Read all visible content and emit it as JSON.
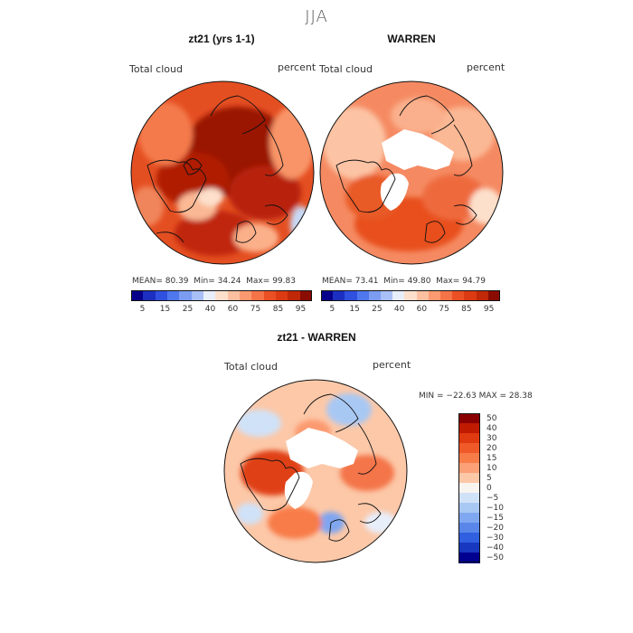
{
  "season": "JJA",
  "panels": [
    {
      "title": "zt21 (yrs 1-1)",
      "var_label": "Total cloud",
      "units": "percent",
      "stats": {
        "mean_label": "MEAN=",
        "mean": "80.39",
        "min_label": "Min=",
        "min": "34.24",
        "max_label": "Max=",
        "max": "99.83"
      }
    },
    {
      "title": "WARREN",
      "var_label": "Total cloud",
      "units": "percent",
      "stats": {
        "mean_label": "MEAN=",
        "mean": "73.41",
        "min_label": "Min=",
        "min": "49.80",
        "max_label": "Max=",
        "max": "94.79"
      }
    },
    {
      "title": "zt21 - WARREN",
      "var_label": "Total cloud",
      "units": "percent",
      "range_text": "MIN = −22.63 MAX =  28.38"
    }
  ],
  "abs_colorbar": {
    "colors": [
      "#08008a",
      "#1c2fc0",
      "#3050e0",
      "#5078ee",
      "#7c9cf2",
      "#a8c0f6",
      "#e8eefa",
      "#fde0cc",
      "#fcc0a0",
      "#fb9a70",
      "#f47448",
      "#eb5024",
      "#dc3a12",
      "#c02808",
      "#8a0c00"
    ],
    "tick_labels": [
      "5",
      "15",
      "25",
      "40",
      "60",
      "75",
      "85",
      "95"
    ]
  },
  "diff_colorbar": {
    "colors": [
      "#8a0000",
      "#c01a00",
      "#e03a10",
      "#f05a28",
      "#f87c48",
      "#fca078",
      "#fdc8a8",
      "#f8f4f0",
      "#d0e2f8",
      "#a8c8f4",
      "#80a8f0",
      "#5a86ea",
      "#3060e0",
      "#1838c0",
      "#000090"
    ],
    "tick_labels": [
      "50",
      "40",
      "30",
      "20",
      "15",
      "10",
      "5",
      "0",
      "−5",
      "−10",
      "−15",
      "−20",
      "−30",
      "−40",
      "−50"
    ]
  },
  "colors": {
    "land_outline": "#111111",
    "missing": "#ffffff"
  }
}
